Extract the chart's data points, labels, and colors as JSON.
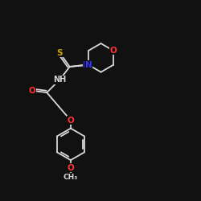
{
  "bg_color": "#111111",
  "bond_color": "#d8d8d8",
  "atom_colors": {
    "O": "#ff3333",
    "N": "#3333ff",
    "S": "#ccaa00",
    "C": "#d8d8d8",
    "H": "#d8d8d8"
  },
  "lw": 1.3
}
